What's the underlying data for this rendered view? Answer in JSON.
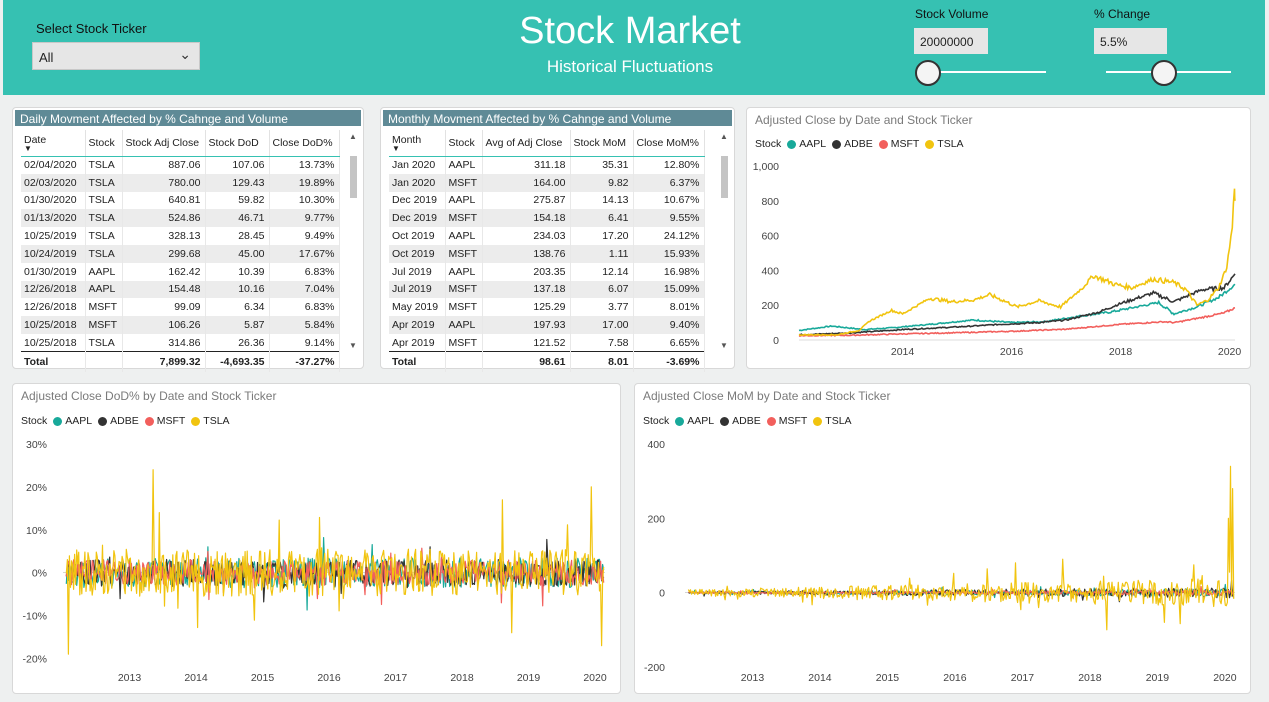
{
  "header": {
    "ticker_label": "Select Stock Ticker",
    "ticker_value": "All",
    "title": "Stock Market",
    "subtitle": "Historical Fluctuations",
    "volume_label": "Stock Volume",
    "volume_value": "20000000",
    "change_label": "% Change",
    "change_value": "5.5%"
  },
  "colors": {
    "header": "#36c1b2",
    "AAPL": "#18a99a",
    "ADBE": "#333333",
    "MSFT": "#f25f5c",
    "TSLA": "#f1c40f"
  },
  "daily_table": {
    "title": "Daily Movment Affected by % Cahnge and Volume",
    "columns": [
      "Date",
      "Stock",
      "Stock Adj Close",
      "Stock DoD",
      "Close DoD%"
    ],
    "rows": [
      [
        "02/04/2020",
        "TSLA",
        "887.06",
        "107.06",
        "13.73%"
      ],
      [
        "02/03/2020",
        "TSLA",
        "780.00",
        "129.43",
        "19.89%"
      ],
      [
        "01/30/2020",
        "TSLA",
        "640.81",
        "59.82",
        "10.30%"
      ],
      [
        "01/13/2020",
        "TSLA",
        "524.86",
        "46.71",
        "9.77%"
      ],
      [
        "10/25/2019",
        "TSLA",
        "328.13",
        "28.45",
        "9.49%"
      ],
      [
        "10/24/2019",
        "TSLA",
        "299.68",
        "45.00",
        "17.67%"
      ],
      [
        "01/30/2019",
        "AAPL",
        "162.42",
        "10.39",
        "6.83%"
      ],
      [
        "12/26/2018",
        "AAPL",
        "154.48",
        "10.16",
        "7.04%"
      ],
      [
        "12/26/2018",
        "MSFT",
        "99.09",
        "6.34",
        "6.83%"
      ],
      [
        "10/25/2018",
        "MSFT",
        "106.26",
        "5.87",
        "5.84%"
      ],
      [
        "10/25/2018",
        "TSLA",
        "314.86",
        "26.36",
        "9.14%"
      ]
    ],
    "total": [
      "Total",
      "",
      "7,899.32",
      "-4,693.35",
      "-37.27%"
    ]
  },
  "monthly_table": {
    "title": "Monthly Movment Affected by % Cahnge and Volume",
    "columns": [
      "Month",
      "Stock",
      "Avg of Adj Close",
      "Stock MoM",
      "Close MoM%"
    ],
    "rows": [
      [
        "Jan 2020",
        "AAPL",
        "311.18",
        "35.31",
        "12.80%"
      ],
      [
        "Jan 2020",
        "MSFT",
        "164.00",
        "9.82",
        "6.37%"
      ],
      [
        "Dec 2019",
        "AAPL",
        "275.87",
        "14.13",
        "10.67%"
      ],
      [
        "Dec 2019",
        "MSFT",
        "154.18",
        "6.41",
        "9.55%"
      ],
      [
        "Oct 2019",
        "AAPL",
        "234.03",
        "17.20",
        "24.12%"
      ],
      [
        "Oct 2019",
        "MSFT",
        "138.76",
        "1.11",
        "15.93%"
      ],
      [
        "Jul 2019",
        "AAPL",
        "203.35",
        "12.14",
        "16.98%"
      ],
      [
        "Jul 2019",
        "MSFT",
        "137.18",
        "6.07",
        "15.09%"
      ],
      [
        "May 2019",
        "MSFT",
        "125.29",
        "3.77",
        "8.01%"
      ],
      [
        "Apr 2019",
        "AAPL",
        "197.93",
        "17.00",
        "9.40%"
      ],
      [
        "Apr 2019",
        "MSFT",
        "121.52",
        "7.58",
        "6.65%"
      ]
    ],
    "total": [
      "Total",
      "",
      "98.61",
      "8.01",
      "-3.69%"
    ]
  },
  "chart_data": [
    {
      "type": "line",
      "title": "Adjusted Close by Date and Stock Ticker",
      "legend_title": "Stock",
      "series_names": [
        "AAPL",
        "ADBE",
        "MSFT",
        "TSLA"
      ],
      "yticks": [
        "0",
        "200",
        "400",
        "600",
        "800",
        "1,000"
      ],
      "ylim": [
        0,
        1000
      ],
      "xticks": [
        "2014",
        "2016",
        "2018",
        "2020"
      ],
      "xlim": [
        2012.1,
        2020.1
      ],
      "series": [
        {
          "name": "AAPL",
          "color": "#18a99a",
          "points": [
            [
              2012.1,
              55
            ],
            [
              2012.7,
              80
            ],
            [
              2013.3,
              60
            ],
            [
              2013.8,
              70
            ],
            [
              2014.5,
              90
            ],
            [
              2015.3,
              115
            ],
            [
              2016.0,
              100
            ],
            [
              2016.6,
              105
            ],
            [
              2017.3,
              140
            ],
            [
              2017.8,
              160
            ],
            [
              2018.7,
              215
            ],
            [
              2018.98,
              150
            ],
            [
              2019.4,
              190
            ],
            [
              2019.8,
              245
            ],
            [
              2020.1,
              320
            ]
          ]
        },
        {
          "name": "ADBE",
          "color": "#333333",
          "points": [
            [
              2012.1,
              30
            ],
            [
              2013.0,
              40
            ],
            [
              2014.0,
              60
            ],
            [
              2015.0,
              75
            ],
            [
              2015.8,
              90
            ],
            [
              2016.5,
              100
            ],
            [
              2017.0,
              115
            ],
            [
              2017.6,
              160
            ],
            [
              2018.0,
              210
            ],
            [
              2018.6,
              270
            ],
            [
              2018.98,
              220
            ],
            [
              2019.5,
              290
            ],
            [
              2019.9,
              300
            ],
            [
              2020.1,
              380
            ]
          ]
        },
        {
          "name": "MSFT",
          "color": "#f25f5c",
          "points": [
            [
              2012.1,
              25
            ],
            [
              2013.0,
              27
            ],
            [
              2014.0,
              35
            ],
            [
              2015.0,
              42
            ],
            [
              2016.0,
              50
            ],
            [
              2017.0,
              62
            ],
            [
              2018.0,
              90
            ],
            [
              2018.8,
              105
            ],
            [
              2019.0,
              100
            ],
            [
              2019.5,
              130
            ],
            [
              2019.9,
              155
            ],
            [
              2020.1,
              185
            ]
          ]
        },
        {
          "name": "TSLA",
          "color": "#f1c40f",
          "points": [
            [
              2012.1,
              30
            ],
            [
              2012.8,
              30
            ],
            [
              2013.2,
              55
            ],
            [
              2013.4,
              110
            ],
            [
              2013.8,
              170
            ],
            [
              2014.0,
              150
            ],
            [
              2014.5,
              240
            ],
            [
              2014.9,
              220
            ],
            [
              2015.3,
              230
            ],
            [
              2015.6,
              260
            ],
            [
              2015.9,
              220
            ],
            [
              2016.1,
              190
            ],
            [
              2016.5,
              225
            ],
            [
              2016.9,
              190
            ],
            [
              2017.3,
              300
            ],
            [
              2017.5,
              370
            ],
            [
              2017.9,
              320
            ],
            [
              2018.2,
              300
            ],
            [
              2018.6,
              350
            ],
            [
              2018.98,
              330
            ],
            [
              2019.2,
              290
            ],
            [
              2019.4,
              200
            ],
            [
              2019.6,
              230
            ],
            [
              2019.8,
              300
            ],
            [
              2019.95,
              420
            ],
            [
              2020.05,
              650
            ],
            [
              2020.09,
              887
            ],
            [
              2020.1,
              800
            ]
          ]
        }
      ]
    },
    {
      "type": "line",
      "title": "Adjusted Close DoD% by Date and Stock Ticker",
      "legend_title": "Stock",
      "series_names": [
        "AAPL",
        "ADBE",
        "MSFT",
        "TSLA"
      ],
      "yticks": [
        "30%",
        "20%",
        "10%",
        "0%",
        "-10%",
        "-20%"
      ],
      "ylim": [
        -22,
        30
      ],
      "xticks": [
        "2013",
        "2014",
        "2015",
        "2016",
        "2017",
        "2018",
        "2019",
        "2020"
      ],
      "xlim": [
        2012.0,
        2020.15
      ],
      "noise_series": [
        {
          "name": "AAPL",
          "color": "#18a99a",
          "amp": 3.5
        },
        {
          "name": "ADBE",
          "color": "#333333",
          "amp": 3.2
        },
        {
          "name": "MSFT",
          "color": "#f25f5c",
          "amp": 3.0
        },
        {
          "name": "TSLA",
          "color": "#f1c40f",
          "amp": 5.5
        }
      ]
    },
    {
      "type": "line",
      "title": "Adjusted Close MoM by Date and Stock Ticker",
      "legend_title": "Stock",
      "series_names": [
        "AAPL",
        "ADBE",
        "MSFT",
        "TSLA"
      ],
      "yticks": [
        "400",
        "200",
        "0",
        "-200"
      ],
      "ylim": [
        -200,
        400
      ],
      "xticks": [
        "2013",
        "2014",
        "2015",
        "2016",
        "2017",
        "2018",
        "2019",
        "2020"
      ],
      "xlim": [
        2012.0,
        2020.15
      ],
      "noise_series": [
        {
          "name": "AAPL",
          "color": "#18a99a",
          "amp": 6
        },
        {
          "name": "ADBE",
          "color": "#333333",
          "amp": 8
        },
        {
          "name": "MSFT",
          "color": "#f25f5c",
          "amp": 4
        },
        {
          "name": "TSLA",
          "color": "#f1c40f",
          "amp": 22
        }
      ]
    }
  ]
}
